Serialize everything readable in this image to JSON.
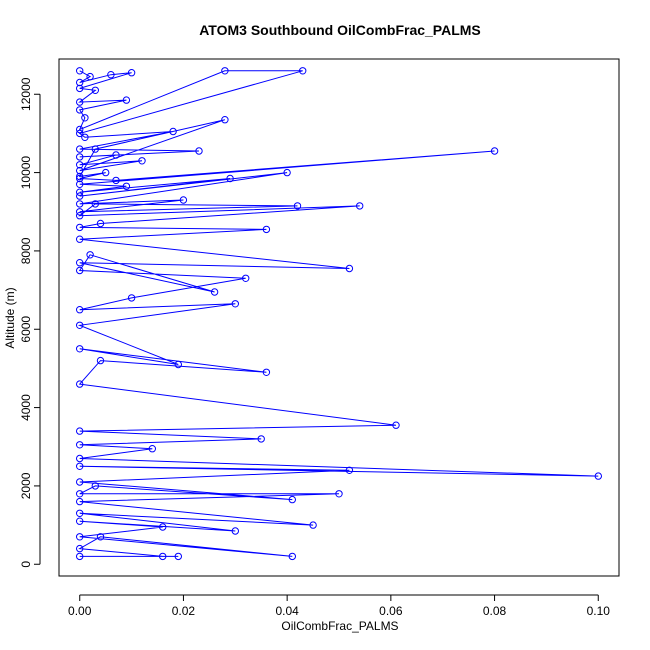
{
  "chart_data": {
    "type": "line",
    "title": "ATOM3 Southbound OilCombFrac_PALMS",
    "xlabel": "OilCombFrac_PALMS",
    "ylabel": "Altitude (m)",
    "xlim": [
      -0.004,
      0.104
    ],
    "ylim": [
      -300,
      12900
    ],
    "x_ticks": [
      0.0,
      0.02,
      0.04,
      0.06,
      0.08,
      0.1
    ],
    "x_tick_labels": [
      "0.00",
      "0.02",
      "0.04",
      "0.06",
      "0.08",
      "0.10"
    ],
    "y_ticks": [
      0,
      2000,
      4000,
      6000,
      8000,
      10000,
      12000
    ],
    "y_tick_labels": [
      "0",
      "2000",
      "4000",
      "6000",
      "8000",
      "10000",
      "12000"
    ],
    "grid": false,
    "legend": "none",
    "marker": "open-circle",
    "series": [
      {
        "color": "#0000ff",
        "x": [
          0.0,
          0.002,
          0.0,
          0.006,
          0.01,
          0.0,
          0.003,
          0.0,
          0.009,
          0.0,
          0.001,
          0.0,
          0.028,
          0.043,
          0.0,
          0.001,
          0.018,
          0.0,
          0.023,
          0.0,
          0.007,
          0.0,
          0.012,
          0.0,
          0.028,
          0.003,
          0.0,
          0.005,
          0.0,
          0.007,
          0.08,
          0.0,
          0.009,
          0.0,
          0.029,
          0.0,
          0.04,
          0.0,
          0.02,
          0.0,
          0.042,
          0.003,
          0.0,
          0.054,
          0.004,
          0.0,
          0.036,
          0.0,
          0.052,
          0.0,
          0.026,
          0.002,
          0.0,
          0.032,
          0.01,
          0.0,
          0.03,
          0.0,
          0.019,
          0.0,
          0.036,
          0.004,
          0.0,
          0.061,
          0.0,
          0.035,
          0.0,
          0.014,
          0.0,
          0.1,
          0.0,
          0.052,
          0.0,
          0.041,
          0.003,
          0.0,
          0.05,
          0.0,
          0.045,
          0.0,
          0.03,
          0.0,
          0.016,
          0.0,
          0.041,
          0.004,
          0.0,
          0.016,
          0.019,
          0.0
        ],
        "y": [
          12600,
          12450,
          12300,
          12500,
          12550,
          12150,
          12100,
          11800,
          11850,
          11600,
          11400,
          11100,
          12600,
          12600,
          11000,
          10900,
          11050,
          10600,
          10550,
          10400,
          10450,
          10200,
          10300,
          10050,
          11350,
          10600,
          9900,
          10000,
          9850,
          9800,
          10550,
          9700,
          9650,
          9500,
          9850,
          9400,
          10000,
          9200,
          9300,
          9000,
          9150,
          9200,
          8900,
          9150,
          8700,
          8600,
          8550,
          8300,
          7550,
          7700,
          6950,
          7900,
          7500,
          7300,
          6800,
          6500,
          6650,
          6100,
          5100,
          5500,
          4900,
          5200,
          4600,
          3550,
          3400,
          3200,
          3050,
          2950,
          2700,
          2250,
          2500,
          2400,
          2100,
          1650,
          2000,
          1800,
          1800,
          1600,
          1000,
          1300,
          850,
          1100,
          950,
          700,
          200,
          700,
          400,
          200,
          200,
          200
        ]
      }
    ]
  }
}
